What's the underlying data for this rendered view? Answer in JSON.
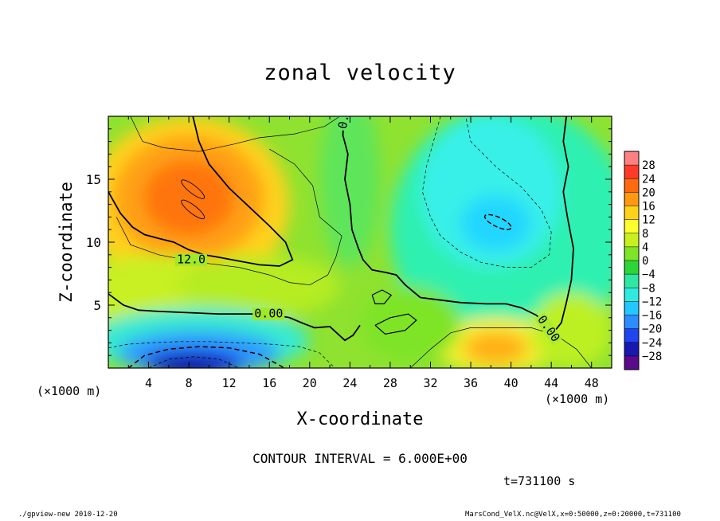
{
  "chart_data": {
    "type": "heatmap",
    "title": "zonal velocity",
    "xlabel": "X-coordinate",
    "ylabel": "Z-coordinate",
    "x_unit": "(×1000 m)",
    "xlim": [
      0,
      50
    ],
    "ylim": [
      0,
      20
    ],
    "x_ticks": [
      "4",
      "8",
      "12",
      "16",
      "20",
      "24",
      "28",
      "32",
      "36",
      "40",
      "44",
      "48"
    ],
    "x_tick_values": [
      4,
      8,
      12,
      16,
      20,
      24,
      28,
      32,
      36,
      40,
      44,
      48
    ],
    "y_ticks": [
      "5",
      "10",
      "15"
    ],
    "y_tick_values": [
      5,
      10,
      15
    ],
    "colorbar": {
      "labels": [
        "28",
        "24",
        "20",
        "16",
        "12",
        "8",
        "4",
        "0",
        "−4",
        "−8",
        "−12",
        "−16",
        "−20",
        "−24",
        "−28"
      ],
      "min": -30,
      "max": 30
    },
    "contour_interval": "CONTOUR INTERVAL = 6.000E+00",
    "contour_labels": [
      {
        "text": "12.0",
        "x": 6.8,
        "z": 8.5
      },
      {
        "text": "0.00",
        "x": 14.5,
        "z": 4.2
      },
      {
        "text": "0.00",
        "x": 23.4,
        "z": 19.0
      },
      {
        "text": "0.00",
        "x": 42.8,
        "z": 4.0
      }
    ],
    "features": [
      {
        "type": "max",
        "x": 8,
        "z": 13.5,
        "value": 18
      },
      {
        "type": "min",
        "x": 8,
        "z": 0.5,
        "value": -24
      },
      {
        "type": "min",
        "x": 38.5,
        "z": 11.5,
        "value": -13
      },
      {
        "type": "max",
        "x": 38,
        "z": 1.5,
        "value": 12
      }
    ],
    "time": "t=731100 s"
  },
  "footer": {
    "left": "./gpview-new   2010-12-20",
    "right": "MarsCond_VelX.nc@VelX,x=0:50000,z=0:20000,t=731100"
  }
}
